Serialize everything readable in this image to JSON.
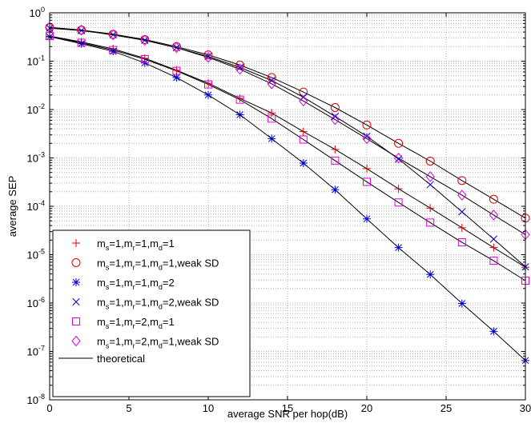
{
  "chart_data": {
    "type": "line",
    "xlabel": "average SNR per hop(dB)",
    "ylabel": "average SEP",
    "xlim": [
      0,
      30
    ],
    "ylim_exponent": [
      -8,
      0
    ],
    "y_scale": "log",
    "grid": true,
    "legend_position": "bottom-left",
    "x_ticks": [
      "0",
      "5",
      "10",
      "15",
      "20",
      "25",
      "30"
    ],
    "y_ticks": [
      {
        "base": "10",
        "exp": "0"
      },
      {
        "base": "10",
        "exp": "-1"
      },
      {
        "base": "10",
        "exp": "-2"
      },
      {
        "base": "10",
        "exp": "-3"
      },
      {
        "base": "10",
        "exp": "-4"
      },
      {
        "base": "10",
        "exp": "-5"
      },
      {
        "base": "10",
        "exp": "-6"
      },
      {
        "base": "10",
        "exp": "-7"
      },
      {
        "base": "10",
        "exp": "-8"
      }
    ],
    "x": [
      0,
      2,
      4,
      6,
      8,
      10,
      12,
      14,
      16,
      18,
      20,
      22,
      24,
      26,
      28,
      30
    ],
    "series": [
      {
        "legend_parts": [
          [
            "m",
            "s",
            "=1,"
          ],
          [
            "m",
            "r",
            "=1,"
          ],
          [
            "m",
            "d",
            "=1"
          ]
        ],
        "legend_suffix": "",
        "marker": "plus",
        "color": "#e00000",
        "values": [
          0.33,
          0.25,
          0.18,
          0.115,
          0.065,
          0.035,
          0.017,
          0.0085,
          0.0035,
          0.0015,
          0.0006,
          0.00023,
          9.2e-05,
          3.6e-05,
          1.4e-05,
          5.5e-06
        ]
      },
      {
        "legend_parts": [
          [
            "m",
            "s",
            "=1,"
          ],
          [
            "m",
            "r",
            "=1,"
          ],
          [
            "m",
            "d",
            "=1,weak SD"
          ]
        ],
        "legend_suffix": "",
        "marker": "circle",
        "color": "#e00000",
        "values": [
          0.5,
          0.44,
          0.36,
          0.28,
          0.2,
          0.135,
          0.083,
          0.046,
          0.023,
          0.011,
          0.0048,
          0.002,
          0.00086,
          0.00034,
          0.00014,
          5.7e-05
        ]
      },
      {
        "legend_parts": [
          [
            "m",
            "s",
            "=1,"
          ],
          [
            "m",
            "r",
            "=1,"
          ],
          [
            "m",
            "d",
            "=2"
          ]
        ],
        "legend_suffix": "",
        "marker": "asterisk",
        "color": "#0000d0",
        "values": [
          0.32,
          0.23,
          0.16,
          0.092,
          0.046,
          0.02,
          0.0078,
          0.0025,
          0.00078,
          0.00022,
          5.5e-05,
          1.4e-05,
          3.9e-06,
          9.8e-07,
          2.6e-07,
          6.5e-08
        ]
      },
      {
        "legend_parts": [
          [
            "m",
            "s",
            "=1,"
          ],
          [
            "m",
            "r",
            "=1,"
          ],
          [
            "m",
            "d",
            "=2,weak SD"
          ]
        ],
        "legend_suffix": "",
        "marker": "cross",
        "color": "#0000d0",
        "values": [
          0.48,
          0.43,
          0.35,
          0.27,
          0.19,
          0.125,
          0.074,
          0.04,
          0.018,
          0.0072,
          0.0028,
          0.00095,
          0.00028,
          7.7e-05,
          2.1e-05,
          5.6e-06
        ]
      },
      {
        "legend_parts": [
          [
            "m",
            "s",
            "=1,"
          ],
          [
            "m",
            "r",
            "=2,"
          ],
          [
            "m",
            "d",
            "=1"
          ]
        ],
        "legend_suffix": "",
        "marker": "square",
        "color": "#e000e0",
        "values": [
          0.33,
          0.24,
          0.17,
          0.11,
          0.063,
          0.033,
          0.016,
          0.0065,
          0.0024,
          0.00088,
          0.00032,
          0.00012,
          4.6e-05,
          1.8e-05,
          7.5e-06,
          2.9e-06
        ]
      },
      {
        "legend_parts": [
          [
            "m",
            "s",
            "=1,"
          ],
          [
            "m",
            "r",
            "=2,"
          ],
          [
            "m",
            "d",
            "=1,weak SD"
          ]
        ],
        "legend_suffix": "",
        "marker": "diamond",
        "color": "#e000e0",
        "values": [
          0.5,
          0.44,
          0.35,
          0.27,
          0.19,
          0.12,
          0.068,
          0.034,
          0.015,
          0.0062,
          0.0025,
          0.00099,
          0.00041,
          0.00017,
          6.6e-05,
          2.6e-05
        ]
      }
    ],
    "theoretical_legend": "theoretical",
    "colors": {
      "line": "#000000",
      "grid": "#b0b0b0"
    }
  }
}
